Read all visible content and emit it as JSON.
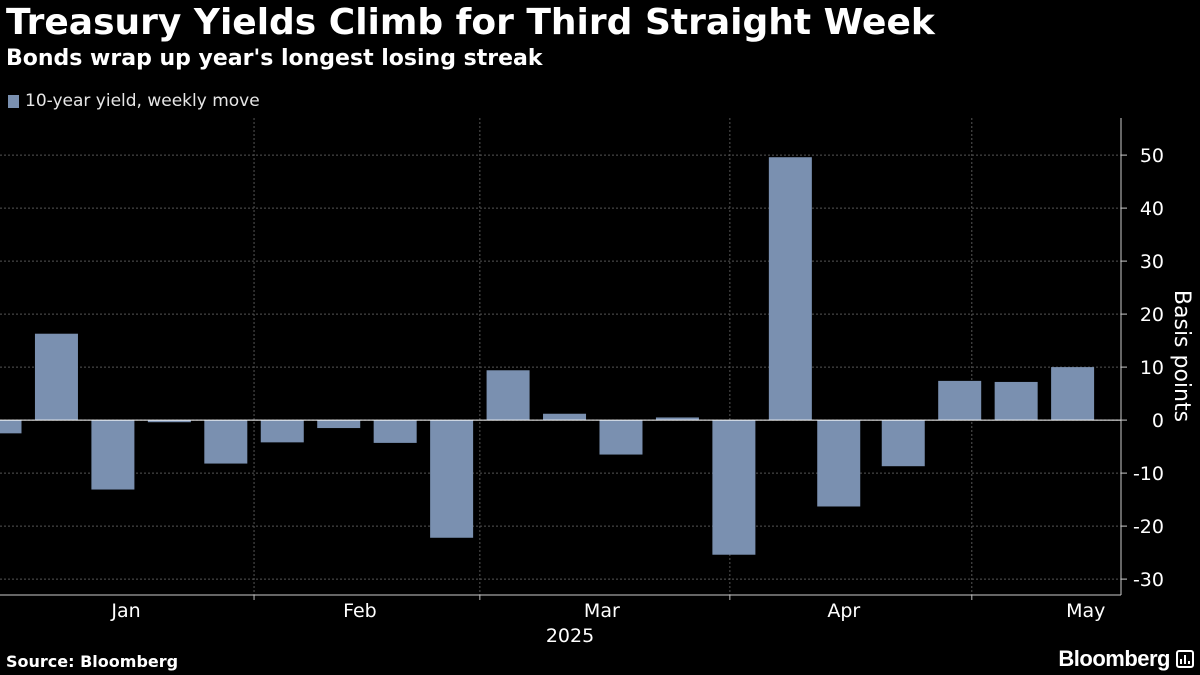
{
  "header": {
    "title": "Treasury Yields Climb for Third Straight Week",
    "subtitle": "Bonds wrap up year's longest losing streak"
  },
  "footer": {
    "source": "Source: Bloomberg",
    "brand": "Bloomberg"
  },
  "colors": {
    "background": "#000000",
    "bar": "#7a90b0",
    "grid": "#555555",
    "text": "#ffffff"
  },
  "chart_data": {
    "type": "bar",
    "legend": [
      "10-year yield, weekly move"
    ],
    "legend_position": "top-left",
    "ylabel": "Basis points",
    "y_axis_side": "right",
    "ylim": [
      -33,
      57
    ],
    "yticks": [
      -30,
      -20,
      -10,
      0,
      10,
      20,
      30,
      40,
      50
    ],
    "grid": true,
    "x_labels": [
      "Jan",
      "Feb",
      "Mar",
      "Apr",
      "May"
    ],
    "x_year_label": "2025",
    "series": [
      {
        "name": "10-year yield, weekly move",
        "color": "#7a90b0",
        "weeks": [
          "2025-01-03",
          "2025-01-10",
          "2025-01-17",
          "2025-01-24",
          "2025-01-31",
          "2025-02-07",
          "2025-02-14",
          "2025-02-21",
          "2025-02-28",
          "2025-03-07",
          "2025-03-14",
          "2025-03-21",
          "2025-03-28",
          "2025-04-04",
          "2025-04-11",
          "2025-04-17",
          "2025-04-25",
          "2025-05-02",
          "2025-05-09",
          "2025-05-16"
        ],
        "values": [
          -2.5,
          16.3,
          -13.1,
          -0.4,
          -8.2,
          -4.2,
          -1.5,
          -4.3,
          -22.2,
          9.4,
          1.2,
          -6.5,
          0.5,
          -25.4,
          49.6,
          -16.3,
          -8.7,
          7.4,
          7.2,
          10.0
        ]
      }
    ]
  }
}
